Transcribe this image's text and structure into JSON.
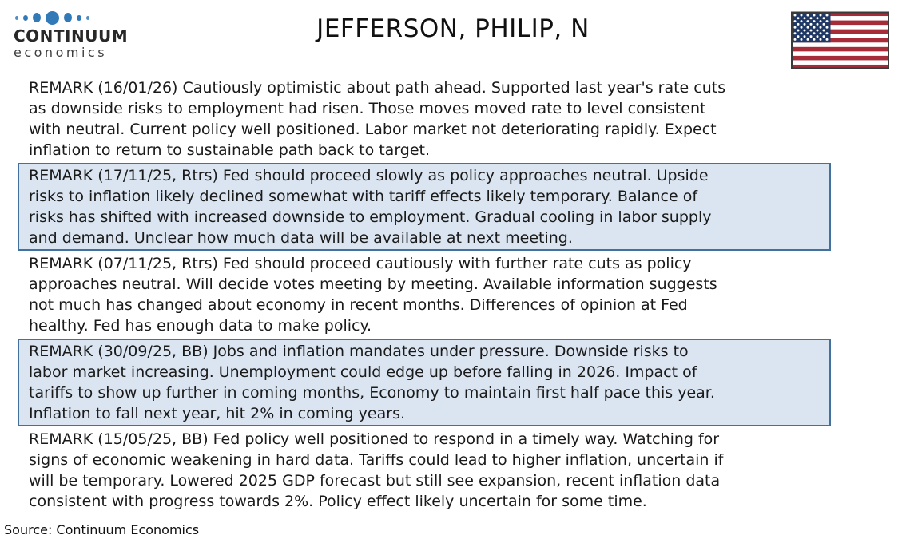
{
  "header": {
    "logo": {
      "name": "CONTINUUM",
      "subname": "economics",
      "dots_icon": "continuum-dots-icon",
      "dot_color": "#3279b7"
    },
    "title": "JEFFERSON, PHILIP, N",
    "flag_icon": "us-flag-icon"
  },
  "colors": {
    "highlight_background": "#dbe5f1",
    "highlight_border": "#41719c",
    "body_text": "#1a1a1a",
    "flag_red": "#a62c39",
    "flag_canton_blue": "#1f3864"
  },
  "remarks": [
    {
      "highlighted": false,
      "text": "REMARK (16/01/26) Cautiously optimistic about path ahead. Supported last year's rate cuts\nas downside risks to employment had risen. Those moves moved rate to level consistent\nwith neutral. Current policy well positioned.  Labor market not deteriorating rapidly. Expect\ninflation to return to sustainable path back to target."
    },
    {
      "highlighted": true,
      "text": "REMARK (17/11/25, Rtrs) Fed should proceed slowly as policy approaches neutral. Upside\nrisks to inflation likely declined somewhat with tariff effects likely temporary. Balance of\nrisks has shifted with increased downside to employment. Gradual cooling in labor supply\nand demand. Unclear how much data will be available at next meeting."
    },
    {
      "highlighted": false,
      "text": "REMARK (07/11/25, Rtrs) Fed should proceed cautiously with further rate cuts as policy\napproaches neutral. Will decide votes meeting by meeting. Available information suggests\nnot much has changed about economy in recent months. Differences of opinion at Fed\nhealthy. Fed has enough data to make policy."
    },
    {
      "highlighted": true,
      "text": "REMARK (30/09/25, BB) Jobs and inflation mandates under pressure. Downside risks to\nlabor market increasing. Unemployment could edge up before falling in 2026. Impact of\ntariffs to show up further in coming months, Economy to maintain first half pace this year.\nInflation to fall next year, hit 2% in coming years."
    },
    {
      "highlighted": false,
      "text": "REMARK (15/05/25, BB) Fed policy well positioned to respond in a timely way. Watching for\nsigns of economic weakening in hard data. Tariffs could lead to higher inflation, uncertain if\nwill be temporary. Lowered 2025 GDP forecast but still see expansion, recent inflation data\nconsistent with progress towards 2%. Policy effect likely uncertain for some time."
    }
  ],
  "footer": {
    "source": "Source: Continuum Economics"
  }
}
